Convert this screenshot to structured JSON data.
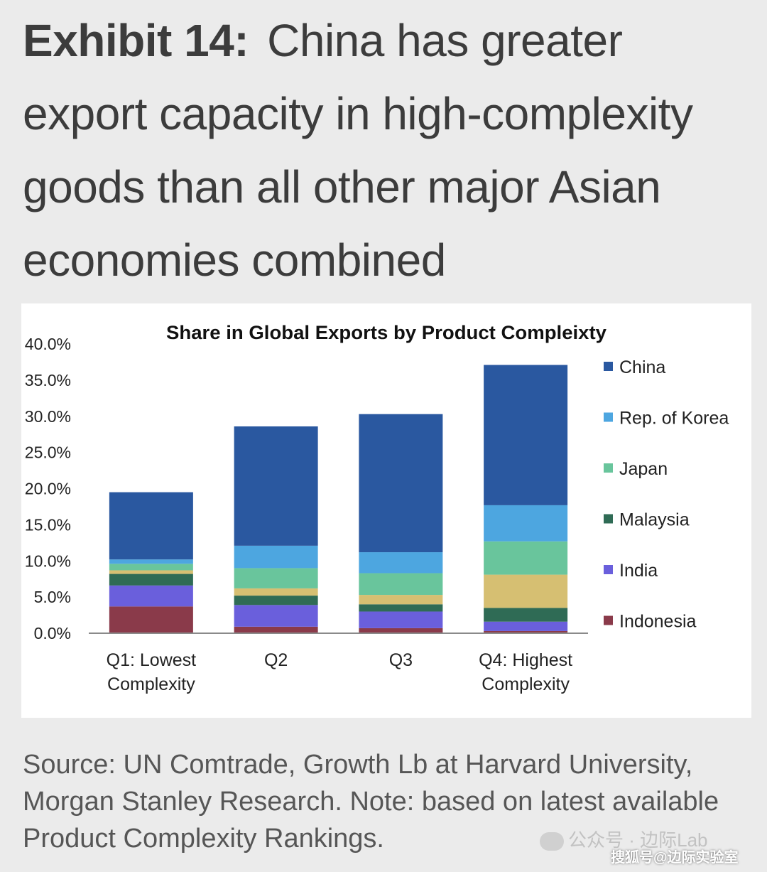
{
  "headline": {
    "lead": "Exhibit 14:",
    "text": "China has greater export capacity in high-complexity goods than all other major Asian economies combined"
  },
  "chart_data": {
    "type": "bar",
    "stacked": true,
    "title": "Share in Global Exports by Product Compleixty",
    "categories": [
      [
        "Q1: Lowest",
        "Complexity"
      ],
      [
        "Q2"
      ],
      [
        "Q3"
      ],
      [
        "Q4: Highest",
        "Complexity"
      ]
    ],
    "ylim": [
      0,
      40
    ],
    "yticks": [
      "0.0%",
      "5.0%",
      "10.0%",
      "15.0%",
      "20.0%",
      "25.0%",
      "30.0%",
      "35.0%",
      "40.0%"
    ],
    "legend_position": "right",
    "grid": false,
    "series": [
      {
        "name": "Indonesia",
        "color": "#8a3a4a",
        "values": [
          3.7,
          0.9,
          0.7,
          0.3
        ]
      },
      {
        "name": "India",
        "color": "#6a5fdc",
        "values": [
          2.9,
          3.0,
          2.3,
          1.3
        ]
      },
      {
        "name": "Malaysia",
        "color": "#2f6b55",
        "values": [
          1.6,
          1.3,
          1.0,
          1.9
        ]
      },
      {
        "name": "",
        "color": "#d6bf72",
        "values": [
          0.5,
          1.0,
          1.3,
          4.6
        ]
      },
      {
        "name": "Japan",
        "color": "#69c59c",
        "values": [
          0.9,
          2.8,
          3.0,
          4.6
        ]
      },
      {
        "name": "Rep. of Korea",
        "color": "#4da6e0",
        "values": [
          0.6,
          3.1,
          2.9,
          5.0
        ]
      },
      {
        "name": "China",
        "color": "#2a58a0",
        "values": [
          9.3,
          16.5,
          19.1,
          19.4
        ]
      }
    ],
    "legend_order": [
      "China",
      "Rep. of Korea",
      "Japan",
      "Malaysia",
      "India",
      "Indonesia"
    ]
  },
  "source": "Source: UN Comtrade, Growth Lb at Harvard University, Morgan Stanley Research. Note: based on latest available Product Complexity Rankings.",
  "watermark": {
    "account": "公众号 · 边际Lab",
    "site": "搜狐号@边际实验室"
  }
}
